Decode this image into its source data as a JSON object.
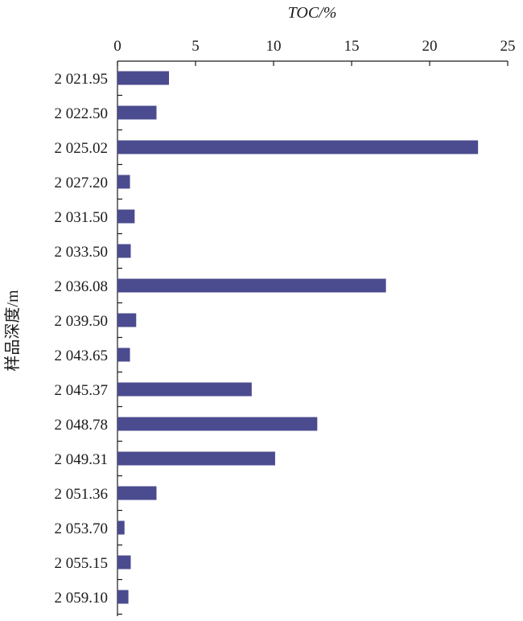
{
  "chart_data": {
    "type": "bar",
    "orientation": "horizontal",
    "xlabel": "TOC/%",
    "ylabel": "样品深度/m",
    "xlim": [
      0,
      25
    ],
    "xticks": [
      0,
      5,
      10,
      15,
      20,
      25
    ],
    "x_axis_position": "top",
    "grid": false,
    "legend": "none",
    "bar_color": "#4b4b8f",
    "categories": [
      "2 021.95",
      "2 022.50",
      "2 025.02",
      "2 027.20",
      "2 031.50",
      "2 033.50",
      "2 036.08",
      "2 039.50",
      "2 043.65",
      "2 045.37",
      "2 048.78",
      "2 049.31",
      "2 051.36",
      "2 053.70",
      "2 055.15",
      "2 059.10"
    ],
    "values": [
      3.3,
      2.5,
      23.1,
      0.8,
      1.1,
      0.85,
      17.2,
      1.2,
      0.8,
      8.6,
      12.8,
      10.1,
      2.5,
      0.45,
      0.85,
      0.7
    ]
  }
}
